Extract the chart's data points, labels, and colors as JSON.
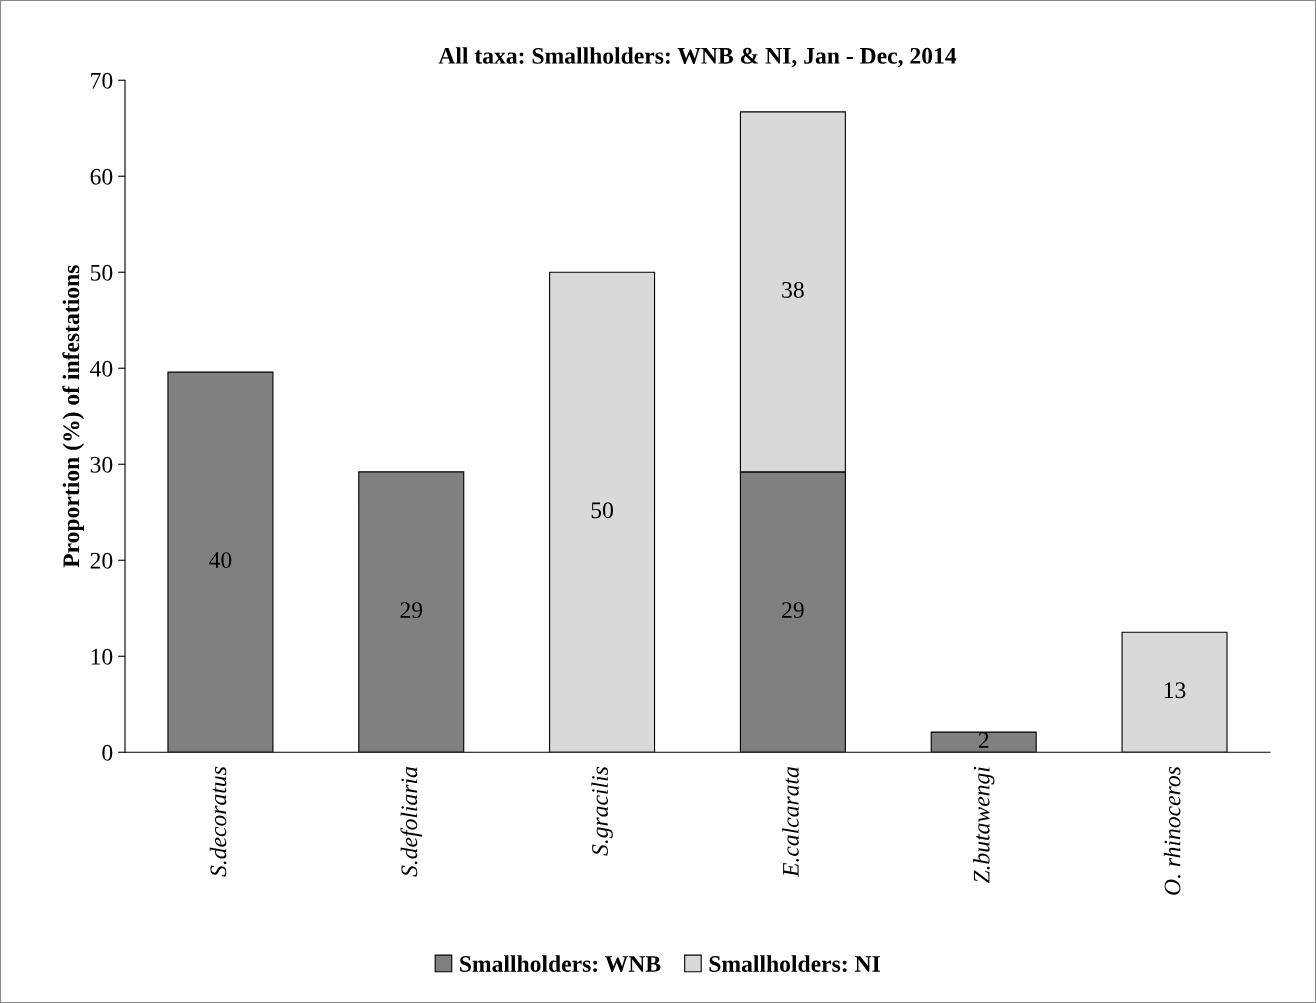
{
  "chart_data": {
    "type": "bar",
    "title": "All taxa: Smallholders: WNB & NI, Jan - Dec, 2014",
    "ylabel": "Proportion (%) of infestations",
    "categories": [
      "S.decoratus",
      "S.defoliaria",
      "S.gracilis",
      "E.calcarata",
      "Z.butawengi",
      "O. rhinoceros"
    ],
    "stacked": true,
    "ylim": [
      0,
      70
    ],
    "yticks": [
      0,
      10,
      20,
      30,
      40,
      50,
      60,
      70
    ],
    "grid": false,
    "legend": "bottom",
    "series": [
      {
        "name": "Smallholders: WNB",
        "color": "#808080",
        "values": [
          39.6,
          29.2,
          null,
          29.2,
          2.1,
          null
        ],
        "value_labels": [
          "40",
          "29",
          null,
          "29",
          "2",
          null
        ]
      },
      {
        "name": "Smallholders: NI",
        "color": "#d9d9d9",
        "values": [
          null,
          null,
          50,
          37.5,
          null,
          12.5
        ],
        "value_labels": [
          null,
          null,
          "50",
          "38",
          null,
          "13"
        ]
      }
    ]
  }
}
